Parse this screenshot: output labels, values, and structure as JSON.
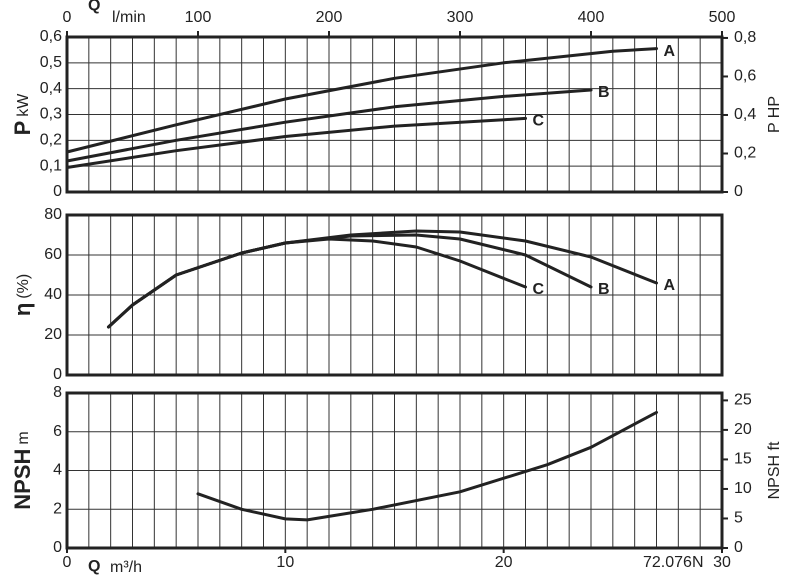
{
  "chart_data": [
    {
      "type": "line",
      "ylabel": "P",
      "yunit": "kW",
      "y2label": "P HP",
      "x2label": "Q",
      "x2unit": "l/min",
      "x2lim": [
        0,
        500
      ],
      "x2ticks": [
        0,
        100,
        200,
        300,
        400,
        500
      ],
      "xlim": [
        0,
        30
      ],
      "xgrid_step": 1,
      "ylim": [
        0,
        0.6
      ],
      "yticks": [
        0,
        {
          "value": 0.1,
          "label": "0,1"
        },
        {
          "value": 0.2,
          "label": "0,2"
        },
        {
          "value": 0.3,
          "label": "0,3"
        },
        {
          "value": 0.4,
          "label": "0,4"
        },
        {
          "value": 0.5,
          "label": "0,5"
        },
        {
          "value": 0.6,
          "label": "0,6"
        }
      ],
      "y2lim": [
        0,
        0.805
      ],
      "y2ticks": [
        0,
        {
          "value": 0.2,
          "label": "0,2"
        },
        {
          "value": 0.4,
          "label": "0,4"
        },
        {
          "value": 0.6,
          "label": "0,6"
        },
        {
          "value": 0.8,
          "label": "0,8"
        }
      ],
      "grid": true,
      "series": [
        {
          "name": "A",
          "color": "#222222",
          "x": [
            0,
            5,
            10,
            15,
            20,
            25,
            27
          ],
          "values": [
            0.155,
            0.26,
            0.36,
            0.44,
            0.5,
            0.545,
            0.555
          ]
        },
        {
          "name": "B",
          "color": "#222222",
          "x": [
            0,
            5,
            10,
            15,
            20,
            24
          ],
          "values": [
            0.12,
            0.2,
            0.27,
            0.33,
            0.37,
            0.395
          ]
        },
        {
          "name": "C",
          "color": "#222222",
          "x": [
            0,
            5,
            10,
            15,
            20,
            21
          ],
          "values": [
            0.095,
            0.16,
            0.215,
            0.255,
            0.28,
            0.285
          ]
        }
      ]
    },
    {
      "type": "line",
      "ylabel": "η",
      "yunit": "(%)",
      "xlim": [
        0,
        30
      ],
      "xgrid_step": 1,
      "ylim": [
        0,
        80
      ],
      "yticks": [
        0,
        20,
        40,
        60,
        80
      ],
      "grid": true,
      "series": [
        {
          "name": "A",
          "color": "#222222",
          "x": [
            1.9,
            3,
            5,
            8,
            10,
            13,
            16,
            18,
            21,
            24,
            27
          ],
          "values": [
            24,
            35,
            50,
            61,
            66,
            70,
            72,
            71.5,
            67,
            59,
            46
          ]
        },
        {
          "name": "B",
          "color": "#222222",
          "x": [
            1.9,
            3,
            5,
            8,
            10,
            13,
            16,
            18,
            21,
            24
          ],
          "values": [
            24,
            35,
            50,
            61,
            66,
            69.5,
            70,
            68,
            60,
            44
          ]
        },
        {
          "name": "C",
          "color": "#222222",
          "x": [
            1.9,
            3,
            5,
            8,
            10,
            12,
            14,
            16,
            18,
            21
          ],
          "values": [
            24,
            35,
            50,
            61,
            66,
            68,
            67,
            64,
            57,
            44
          ]
        }
      ]
    },
    {
      "type": "line",
      "ylabel": "NPSH",
      "yunit": "m",
      "y2label": "NPSH ft",
      "xlabel": "Q",
      "xunit": "m³/h",
      "xlim": [
        0,
        30
      ],
      "xticks": [
        0,
        10,
        20,
        30
      ],
      "xgrid_step": 1,
      "ylim": [
        0,
        8
      ],
      "yticks": [
        0,
        2,
        4,
        6,
        8
      ],
      "y2lim": [
        0,
        26.25
      ],
      "y2ticks": [
        0,
        5,
        10,
        15,
        20,
        25
      ],
      "grid": true,
      "annotation": "72.076N",
      "series": [
        {
          "color": "#222222",
          "x": [
            6,
            8,
            10,
            11,
            14,
            18,
            22,
            24,
            27
          ],
          "values": [
            2.8,
            2.0,
            1.5,
            1.45,
            2.0,
            2.9,
            4.3,
            5.2,
            7.0
          ]
        }
      ]
    }
  ]
}
